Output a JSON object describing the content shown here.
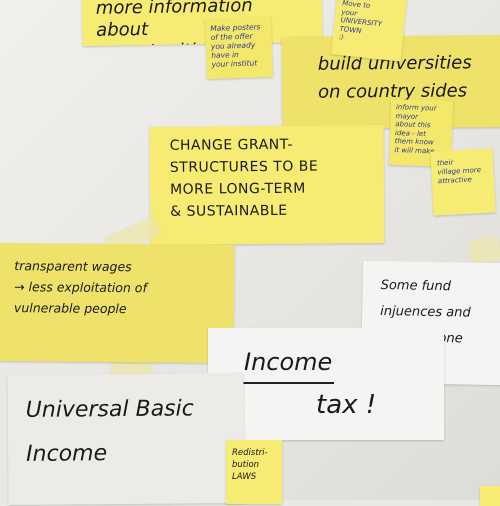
{
  "notes": {
    "top_banner": "more information about\nopportuniti",
    "make_posters": "Make posters\nof the offer\nyou already\nhave in\nyour institut",
    "move_to_town": "Move to\nyour\nUNIVERSITY\nTOWN\n:)",
    "build_universities": "build universities\non country sides",
    "inform_mayor": "inform your\nmayor\nabout this\nidea - let\nthem know\nit will make",
    "village_attractive": "their\nvillage more\nattractive",
    "change_grant": "CHANGE GRANT-\nSTRUCTURES TO BE\nMORE LONG-TERM\n& SUSTAINABLE",
    "transparent_wages": "transparent wages\n→ less exploitation of\nvulnerable people",
    "some_funding": "Some fund\ninjuences and\nfor everyone",
    "income_tax_1": "Income",
    "income_tax_2": "tax !",
    "ubi": "Universal Basic\nIncome",
    "redistribution": "Redistri-\nbution\nLAWS"
  }
}
